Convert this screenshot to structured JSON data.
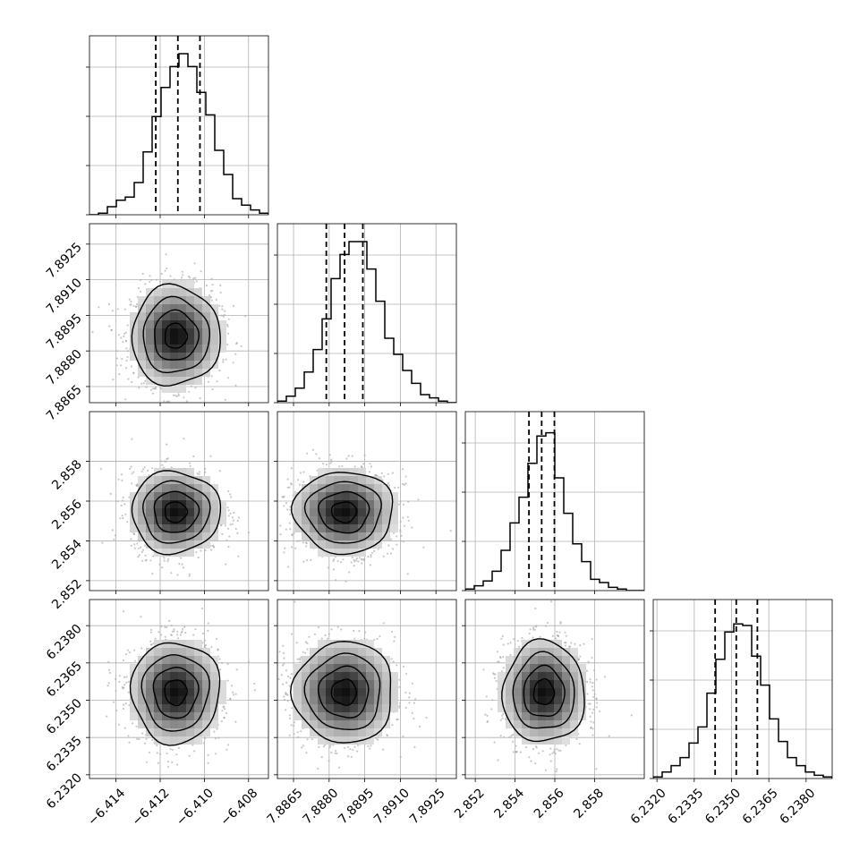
{
  "chart_data": {
    "type": "corner",
    "title": "",
    "parameters": 4,
    "axis_labels": [
      "",
      "",
      "",
      ""
    ],
    "ranges": [
      [
        -6.4152,
        -6.4071
      ],
      [
        7.88582,
        7.89336
      ],
      [
        2.8515,
        2.8605
      ],
      [
        6.23185,
        6.23905
      ]
    ],
    "x_ticks": [
      {
        "values": [
          -6.414,
          -6.412,
          -6.41,
          -6.408
        ],
        "labels": [
          "−6.414",
          "−6.412",
          "−6.410",
          "−6.408"
        ]
      },
      {
        "values": [
          7.8865,
          7.888,
          7.8895,
          7.891,
          7.8925
        ],
        "labels": [
          "7.8865",
          "7.8880",
          "7.8895",
          "7.8910",
          "7.8925"
        ]
      },
      {
        "values": [
          2.852,
          2.854,
          2.856,
          2.858
        ],
        "labels": [
          "2.852",
          "2.854",
          "2.856",
          "2.858"
        ]
      },
      {
        "values": [
          6.232,
          6.2335,
          6.235,
          6.2365,
          6.238
        ],
        "labels": [
          "6.2320",
          "6.2335",
          "6.2350",
          "6.2365",
          "6.2380"
        ]
      }
    ],
    "y_ticks": [
      {
        "values": [],
        "labels": []
      },
      {
        "values": [
          7.8865,
          7.888,
          7.8895,
          7.891,
          7.8925
        ],
        "labels": [
          "7.8865",
          "7.8880",
          "7.8895",
          "7.8910",
          "7.8925"
        ]
      },
      {
        "values": [
          2.852,
          2.854,
          2.856,
          2.858
        ],
        "labels": [
          "2.852",
          "2.854",
          "2.856",
          "2.858"
        ]
      },
      {
        "values": [
          6.232,
          6.2335,
          6.235,
          6.2365,
          6.238
        ],
        "labels": [
          "6.2320",
          "6.2335",
          "6.2350",
          "6.2365",
          "6.2380"
        ]
      }
    ],
    "means": [
      -6.4113,
      7.88863,
      2.85545,
      6.23532
    ],
    "sigmas": [
      0.001,
      0.00105,
      0.00103,
      0.00102
    ],
    "quantiles_16_50_84": [
      [
        -6.4122,
        -6.4112,
        -6.4102
      ],
      [
        7.88788,
        7.88865,
        7.88942
      ],
      [
        2.8547,
        2.85534,
        2.85598
      ],
      [
        6.23434,
        6.23519,
        6.23604
      ]
    ],
    "histograms": [
      [
        0.0,
        0.01,
        0.05,
        0.09,
        0.11,
        0.2,
        0.39,
        0.61,
        0.79,
        0.92,
        1.0,
        0.92,
        0.76,
        0.62,
        0.4,
        0.25,
        0.1,
        0.06,
        0.03,
        0.01
      ],
      [
        0.01,
        0.04,
        0.09,
        0.19,
        0.33,
        0.52,
        0.77,
        0.92,
        1.0,
        1.0,
        0.83,
        0.63,
        0.4,
        0.3,
        0.2,
        0.12,
        0.05,
        0.03,
        0.01,
        0.0
      ],
      [
        0.01,
        0.03,
        0.06,
        0.12,
        0.25,
        0.42,
        0.58,
        0.79,
        0.96,
        0.98,
        0.7,
        0.48,
        0.29,
        0.18,
        0.07,
        0.05,
        0.02,
        0.01,
        0.0,
        0.0
      ],
      [
        0.01,
        0.04,
        0.08,
        0.13,
        0.22,
        0.32,
        0.53,
        0.74,
        0.91,
        0.96,
        0.95,
        0.76,
        0.58,
        0.37,
        0.23,
        0.13,
        0.08,
        0.04,
        0.02,
        0.01
      ]
    ],
    "contour_levels_sigma": [
      0.5,
      1.0,
      1.5,
      2.0
    ],
    "grid": true,
    "legend": "none"
  }
}
